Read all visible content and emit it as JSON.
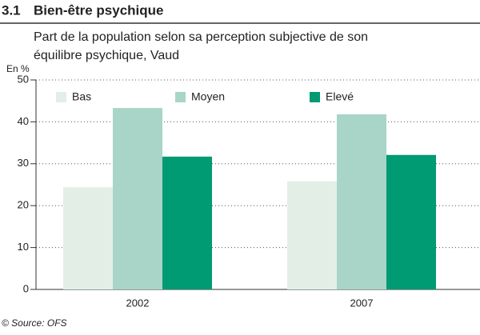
{
  "chart_data": {
    "type": "bar",
    "section_number": "3.1",
    "title": "Bien-être psychique",
    "subtitle": [
      "Part de la population selon sa perception subjective de son",
      "équilibre psychique, Vaud"
    ],
    "y_label": "En %",
    "categories": [
      "2002",
      "2007"
    ],
    "series": [
      {
        "name": "Bas",
        "color": "#e3efe6",
        "values": [
          24.4,
          25.8
        ]
      },
      {
        "name": "Moyen",
        "color": "#a8d5c8",
        "values": [
          43.3,
          41.8
        ]
      },
      {
        "name": "Elevé",
        "color": "#009a73",
        "values": [
          31.7,
          32.1
        ]
      }
    ],
    "ylim": [
      0,
      50
    ],
    "yticks": [
      0,
      10,
      20,
      30,
      40,
      50
    ],
    "grid": true,
    "source": "© Source: OFS"
  }
}
